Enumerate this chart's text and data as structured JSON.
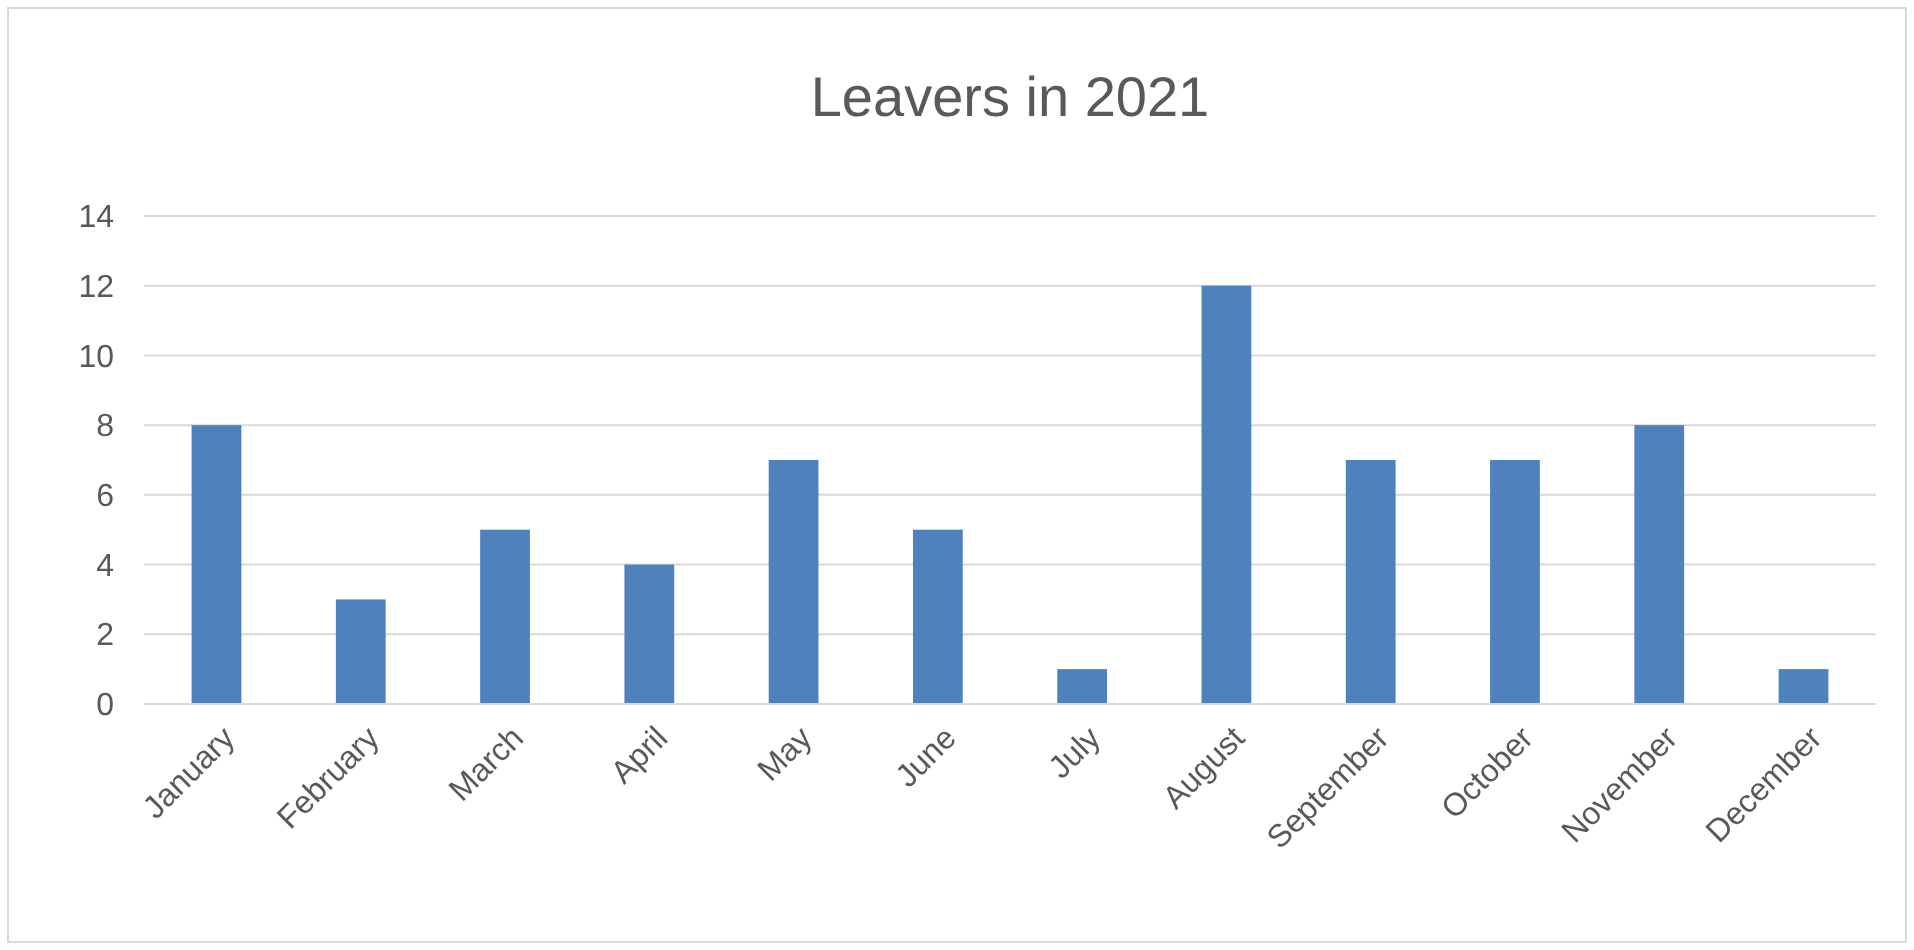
{
  "chart_data": {
    "type": "bar",
    "title": "Leavers in 2021",
    "categories": [
      "January",
      "February",
      "March",
      "April",
      "May",
      "June",
      "July",
      "August",
      "September",
      "October",
      "November",
      "December"
    ],
    "values": [
      8,
      3,
      5,
      4,
      7,
      5,
      1,
      12,
      7,
      7,
      8,
      1
    ],
    "color": "#4f81bd",
    "ylim": [
      0,
      14
    ],
    "yticks": [
      0,
      2,
      4,
      6,
      8,
      10,
      12,
      14
    ],
    "grid": "y"
  }
}
